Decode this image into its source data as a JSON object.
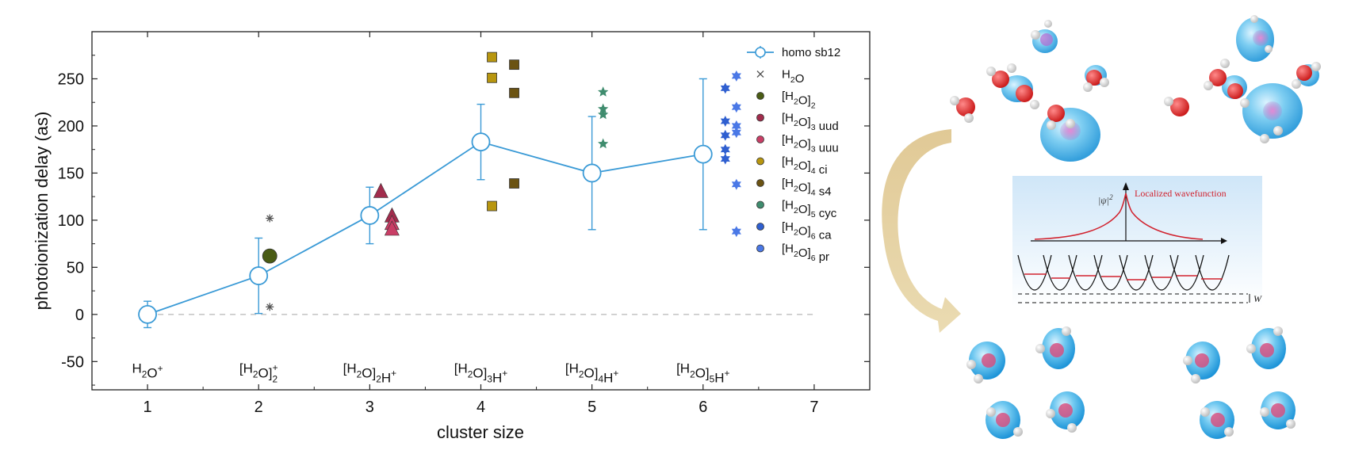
{
  "chart_data": {
    "type": "scatter",
    "xlabel": "cluster size",
    "ylabel": "photoionization delay (as)",
    "xlim": [
      0.5,
      7.5
    ],
    "ylim": [
      -80,
      300
    ],
    "xticks": [
      1,
      2,
      3,
      4,
      5,
      6,
      7
    ],
    "yticks": [
      -50,
      0,
      50,
      100,
      150,
      200,
      250
    ],
    "grid": false,
    "legend_position": "top-right",
    "zero_line": true,
    "cluster_labels": [
      {
        "x": 1,
        "base": "H",
        "parts": [
          [
            "",
            "H"
          ],
          [
            "sub",
            "2"
          ],
          [
            "",
            "O"
          ],
          [
            "sup",
            "+"
          ]
        ]
      },
      {
        "x": 2,
        "parts": [
          [
            "",
            "[H"
          ],
          [
            "sub",
            "2"
          ],
          [
            "",
            "O]"
          ],
          [
            "subsup",
            "2",
            "+"
          ]
        ]
      },
      {
        "x": 3,
        "parts": [
          [
            "",
            "[H"
          ],
          [
            "sub",
            "2"
          ],
          [
            "",
            "O]"
          ],
          [
            "sub",
            "2"
          ],
          [
            "",
            "H"
          ],
          [
            "sup",
            "+"
          ]
        ]
      },
      {
        "x": 4,
        "parts": [
          [
            "",
            "[H"
          ],
          [
            "sub",
            "2"
          ],
          [
            "",
            "O]"
          ],
          [
            "sub",
            "3"
          ],
          [
            "",
            "H"
          ],
          [
            "sup",
            "+"
          ]
        ]
      },
      {
        "x": 5,
        "parts": [
          [
            "",
            "[H"
          ],
          [
            "sub",
            "2"
          ],
          [
            "",
            "O]"
          ],
          [
            "sub",
            "4"
          ],
          [
            "",
            "H"
          ],
          [
            "sup",
            "+"
          ]
        ]
      },
      {
        "x": 6,
        "parts": [
          [
            "",
            "[H"
          ],
          [
            "sub",
            "2"
          ],
          [
            "",
            "O]"
          ],
          [
            "sub",
            "5"
          ],
          [
            "",
            "H"
          ],
          [
            "sup",
            "+"
          ]
        ]
      }
    ],
    "series": [
      {
        "name": "homo sb12",
        "marker": "open-circle-line",
        "color": "#3a9ad6",
        "points": [
          {
            "x": 1,
            "y": 0,
            "lo": -14,
            "hi": 14
          },
          {
            "x": 2,
            "y": 41,
            "lo": 1,
            "hi": 81
          },
          {
            "x": 3,
            "y": 105,
            "lo": 75,
            "hi": 135
          },
          {
            "x": 4,
            "y": 183,
            "lo": 143,
            "hi": 223
          },
          {
            "x": 5,
            "y": 150,
            "lo": 90,
            "hi": 210
          },
          {
            "x": 6,
            "y": 170,
            "lo": 90,
            "hi": 250
          }
        ]
      },
      {
        "name": "H2O",
        "legend_parts": [
          [
            "",
            "H"
          ],
          [
            "sub",
            "2"
          ],
          [
            "",
            "O"
          ]
        ],
        "marker": "x",
        "color": "#555555",
        "points": [
          {
            "x": 1,
            "y": 0
          }
        ]
      },
      {
        "name": "[H2O]2",
        "legend_parts": [
          [
            "",
            "[H"
          ],
          [
            "sub",
            "2"
          ],
          [
            "",
            "O]"
          ],
          [
            "sub",
            "2"
          ]
        ],
        "marker": "circle",
        "color": "#4a5c14",
        "points": [
          {
            "x": 2.1,
            "y": 62
          }
        ]
      },
      {
        "name": "[H2O]3 uud",
        "legend_parts": [
          [
            "",
            "[H"
          ],
          [
            "sub",
            "2"
          ],
          [
            "",
            "O]"
          ],
          [
            "sub",
            "3"
          ],
          [
            "",
            " uud"
          ]
        ],
        "marker": "triangle",
        "color": "#a12c4c",
        "points": [
          {
            "x": 3.1,
            "y": 130
          },
          {
            "x": 3.2,
            "y": 104
          }
        ]
      },
      {
        "name": "[H2O]3 uuu",
        "legend_parts": [
          [
            "",
            "[H"
          ],
          [
            "sub",
            "2"
          ],
          [
            "",
            "O]"
          ],
          [
            "sub",
            "3"
          ],
          [
            "",
            " uuu"
          ]
        ],
        "marker": "triangle",
        "color": "#c93e66",
        "points": [
          {
            "x": 3.2,
            "y": 96
          },
          {
            "x": 3.2,
            "y": 90
          }
        ]
      },
      {
        "name": "[H2O]4 ci",
        "legend_parts": [
          [
            "",
            "[H"
          ],
          [
            "sub",
            "2"
          ],
          [
            "",
            "O]"
          ],
          [
            "sub",
            "4"
          ],
          [
            "",
            " ci"
          ]
        ],
        "marker": "square",
        "color": "#b8960f",
        "points": [
          {
            "x": 4.1,
            "y": 273
          },
          {
            "x": 4.1,
            "y": 251
          },
          {
            "x": 4.1,
            "y": 115
          }
        ]
      },
      {
        "name": "[H2O]4 s4",
        "legend_parts": [
          [
            "",
            "[H"
          ],
          [
            "sub",
            "2"
          ],
          [
            "",
            "O]"
          ],
          [
            "sub",
            "4"
          ],
          [
            "",
            " s4"
          ]
        ],
        "marker": "square",
        "color": "#6b5312",
        "points": [
          {
            "x": 4.3,
            "y": 265
          },
          {
            "x": 4.3,
            "y": 235
          },
          {
            "x": 4.3,
            "y": 139
          }
        ]
      },
      {
        "name": "[H2O]5 cyc",
        "legend_parts": [
          [
            "",
            "[H"
          ],
          [
            "sub",
            "2"
          ],
          [
            "",
            "O]"
          ],
          [
            "sub",
            "5"
          ],
          [
            "",
            " cyc"
          ]
        ],
        "marker": "star",
        "color": "#3f8c6e",
        "points": [
          {
            "x": 5.1,
            "y": 236
          },
          {
            "x": 5.1,
            "y": 218
          },
          {
            "x": 5.1,
            "y": 212
          },
          {
            "x": 5.1,
            "y": 181
          }
        ]
      },
      {
        "name": "[H2O]6 ca",
        "legend_parts": [
          [
            "",
            "[H"
          ],
          [
            "sub",
            "2"
          ],
          [
            "",
            "O]"
          ],
          [
            "sub",
            "6"
          ],
          [
            "",
            " ca"
          ]
        ],
        "marker": "hexstar",
        "color": "#2f5fd0",
        "points": [
          {
            "x": 6.2,
            "y": 240
          },
          {
            "x": 6.2,
            "y": 205
          },
          {
            "x": 6.2,
            "y": 190
          },
          {
            "x": 6.2,
            "y": 175
          },
          {
            "x": 6.2,
            "y": 165
          }
        ]
      },
      {
        "name": "[H2O]6 pr",
        "legend_parts": [
          [
            "",
            "[H"
          ],
          [
            "sub",
            "2"
          ],
          [
            "",
            "O]"
          ],
          [
            "sub",
            "6"
          ],
          [
            "",
            " pr"
          ]
        ],
        "marker": "hexstar",
        "color": "#4a78e6",
        "points": [
          {
            "x": 6.3,
            "y": 253
          },
          {
            "x": 6.3,
            "y": 220
          },
          {
            "x": 6.3,
            "y": 200
          },
          {
            "x": 6.3,
            "y": 193
          },
          {
            "x": 6.3,
            "y": 138
          },
          {
            "x": 6.3,
            "y": 88
          }
        ]
      }
    ],
    "extra_markers": [
      {
        "series": "[H2O]2",
        "marker": "asterisk",
        "color": "#555555",
        "points": [
          {
            "x": 2.1,
            "y": 102
          },
          {
            "x": 2.1,
            "y": 8
          }
        ]
      }
    ]
  },
  "inset": {
    "axis_label_parts": [
      [
        "",
        "|ψ|"
      ],
      [
        "sup",
        "2"
      ]
    ],
    "curve_label": "Localized wavefunction",
    "w_label": "W"
  }
}
